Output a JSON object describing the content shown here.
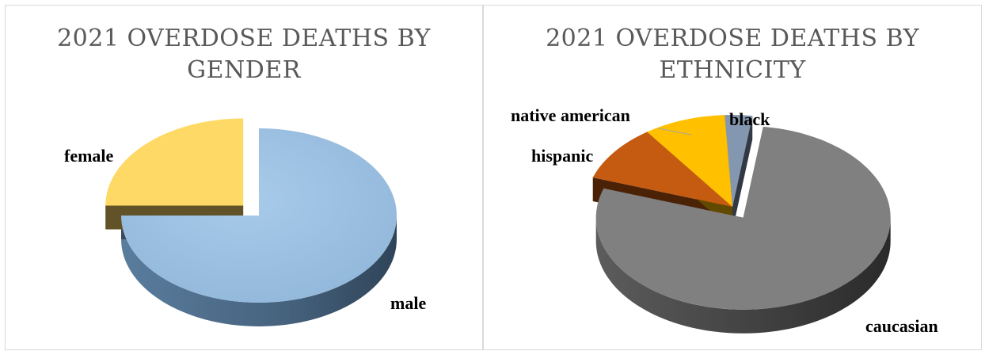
{
  "chart_data": [
    {
      "type": "pie",
      "title_lines": [
        "2021 OVERDOSE DEATHS BY",
        "GENDER"
      ],
      "slices": [
        {
          "label": "male",
          "value": 75,
          "color": "#9dc3e6"
        },
        {
          "label": "female",
          "value": 25,
          "color": "#ffd966"
        }
      ],
      "exploded": "female",
      "style": "3d"
    },
    {
      "type": "pie",
      "title_lines": [
        "2021 OVERDOSE DEATHS BY",
        "ETHNICITY"
      ],
      "slices": [
        {
          "label": "caucasian",
          "value": 78,
          "color": "#808080"
        },
        {
          "label": "hispanic",
          "value": 10,
          "color": "#c55a11"
        },
        {
          "label": "native american",
          "value": 9,
          "color": "#ffc000"
        },
        {
          "label": "black",
          "value": 3,
          "color": "#8497b0"
        }
      ],
      "exploded": "caucasian",
      "style": "3d"
    }
  ]
}
